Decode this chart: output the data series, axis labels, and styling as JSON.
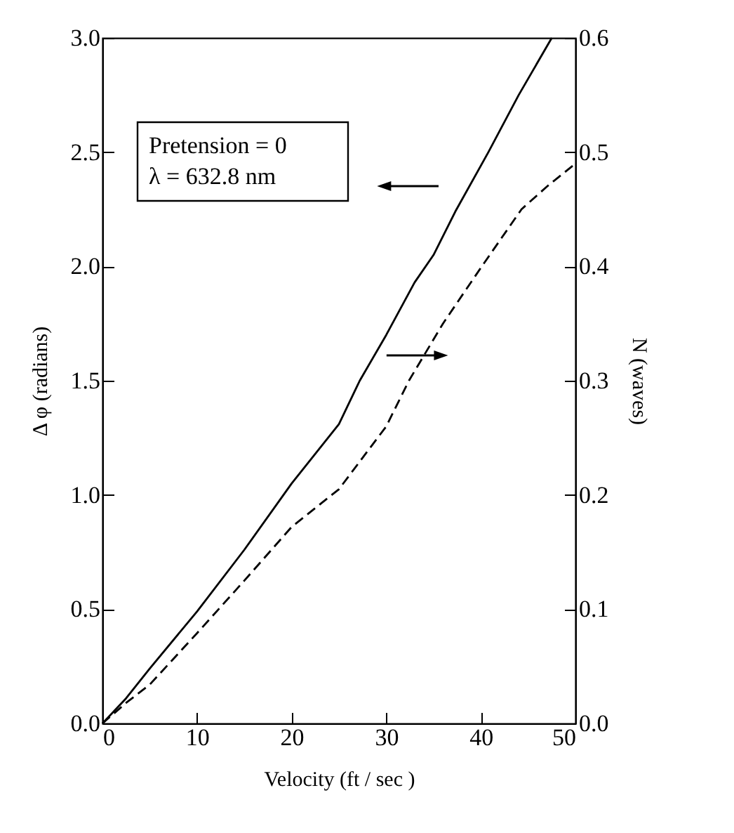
{
  "chart_data": {
    "type": "line",
    "xlabel": "Velocity (ft / sec )",
    "ylabel": "Δ φ  (radians)",
    "y2label": "N  (waves)",
    "annotations": [
      "Pretension = 0",
      "λ = 632.8 nm"
    ],
    "x": [
      0,
      2.5,
      5,
      10,
      15,
      20,
      25,
      27.2,
      30,
      33,
      35,
      37.3,
      40.8,
      44,
      47.5
    ],
    "series": [
      {
        "color": "#000000",
        "line_style": "solid",
        "values": [
          0,
          0.11,
          0.24,
          0.49,
          0.76,
          1.05,
          1.31,
          1.5,
          1.7,
          1.93,
          2.05,
          2.24,
          2.5,
          2.75,
          3.0
        ]
      },
      {
        "color": "#000000",
        "line_style": "dashed",
        "axis": "y2",
        "x": [
          0,
          2.5,
          5,
          10,
          15,
          20,
          25,
          30,
          32.4,
          36,
          40.1,
          44.3,
          47,
          50
        ],
        "values": [
          0,
          0.018,
          0.034,
          0.079,
          0.125,
          0.172,
          0.205,
          0.26,
          0.3,
          0.35,
          0.4,
          0.45,
          0.47,
          0.49
        ]
      }
    ],
    "xlim": [
      0,
      50
    ],
    "xticks": [
      0,
      10,
      20,
      30,
      40,
      50
    ],
    "ylim": [
      0,
      3
    ],
    "yticks": [
      {
        "value": 0,
        "label": "0.0"
      },
      0.5,
      {
        "value": 1,
        "label": "1.0"
      },
      1.5,
      {
        "value": 2,
        "label": "2.0"
      },
      2.5,
      {
        "value": 3,
        "label": "3.0"
      }
    ],
    "y2lim": [
      0,
      0.6
    ],
    "y2ticks": [
      {
        "value": 0,
        "label": "0.0"
      },
      0.1,
      0.2,
      0.3,
      0.4,
      0.5,
      0.6
    ],
    "grid": false,
    "marker": "none"
  }
}
